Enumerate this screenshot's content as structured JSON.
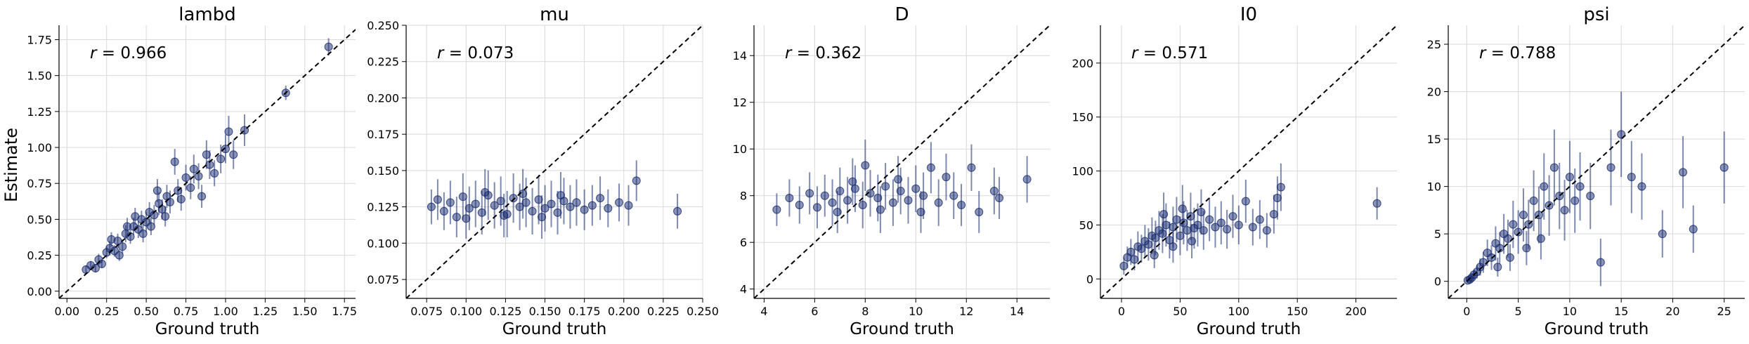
{
  "figure": {
    "ylabel": "Estimate"
  },
  "style": {
    "point_color": "#16296e",
    "diag_color": "#000000",
    "grid_color": "#d9d9d9"
  },
  "chart_data": [
    {
      "type": "scatter",
      "title": "lambd",
      "xlabel": "Ground truth",
      "ylabel": "Estimate",
      "annotation": "r = 0.966",
      "r_value": "0.966",
      "xlim": [
        -0.05,
        1.82
      ],
      "ylim": [
        -0.05,
        1.85
      ],
      "xticks": [
        0.0,
        0.25,
        0.5,
        0.75,
        1.0,
        1.25,
        1.5,
        1.75
      ],
      "xtick_labels": [
        "0.00",
        "0.25",
        "0.50",
        "0.75",
        "1.00",
        "1.25",
        "1.50",
        "1.75"
      ],
      "yticks": [
        0.0,
        0.25,
        0.5,
        0.75,
        1.0,
        1.25,
        1.5,
        1.75
      ],
      "ytick_labels": [
        "0.00",
        "0.25",
        "0.50",
        "0.75",
        "1.00",
        "1.25",
        "1.50",
        "1.75"
      ],
      "grid": true,
      "diagonal": "y = x dashed",
      "points": [
        [
          0.12,
          0.15,
          0.03
        ],
        [
          0.15,
          0.18,
          0.03
        ],
        [
          0.18,
          0.16,
          0.03
        ],
        [
          0.2,
          0.22,
          0.04
        ],
        [
          0.22,
          0.19,
          0.03
        ],
        [
          0.25,
          0.27,
          0.04
        ],
        [
          0.27,
          0.3,
          0.05
        ],
        [
          0.3,
          0.28,
          0.04
        ],
        [
          0.32,
          0.35,
          0.05
        ],
        [
          0.35,
          0.31,
          0.05
        ],
        [
          0.37,
          0.4,
          0.06
        ],
        [
          0.4,
          0.38,
          0.05
        ],
        [
          0.42,
          0.45,
          0.06
        ],
        [
          0.45,
          0.43,
          0.06
        ],
        [
          0.47,
          0.5,
          0.06
        ],
        [
          0.5,
          0.48,
          0.07
        ],
        [
          0.52,
          0.55,
          0.07
        ],
        [
          0.55,
          0.53,
          0.07
        ],
        [
          0.58,
          0.61,
          0.08
        ],
        [
          0.6,
          0.57,
          0.07
        ],
        [
          0.63,
          0.66,
          0.08
        ],
        [
          0.65,
          0.62,
          0.08
        ],
        [
          0.68,
          0.9,
          0.09
        ],
        [
          0.7,
          0.7,
          0.08
        ],
        [
          0.72,
          0.64,
          0.08
        ],
        [
          0.75,
          0.79,
          0.09
        ],
        [
          0.78,
          0.72,
          0.08
        ],
        [
          0.8,
          0.85,
          0.1
        ],
        [
          0.83,
          0.8,
          0.09
        ],
        [
          0.85,
          0.66,
          0.08
        ],
        [
          0.88,
          0.95,
          0.1
        ],
        [
          0.9,
          0.88,
          0.1
        ],
        [
          0.93,
          0.82,
          0.09
        ],
        [
          0.97,
          0.92,
          0.1
        ],
        [
          1.0,
          0.99,
          0.1
        ],
        [
          1.02,
          1.11,
          0.11
        ],
        [
          1.05,
          0.95,
          0.1
        ],
        [
          1.12,
          1.12,
          0.11
        ],
        [
          1.38,
          1.38,
          0.05
        ],
        [
          1.65,
          1.7,
          0.06
        ],
        [
          0.28,
          0.36,
          0.05
        ],
        [
          0.33,
          0.25,
          0.04
        ],
        [
          0.43,
          0.52,
          0.06
        ],
        [
          0.53,
          0.45,
          0.06
        ],
        [
          0.57,
          0.7,
          0.08
        ],
        [
          0.62,
          0.52,
          0.07
        ],
        [
          0.38,
          0.45,
          0.06
        ],
        [
          0.48,
          0.4,
          0.06
        ]
      ]
    },
    {
      "type": "scatter",
      "title": "mu",
      "xlabel": "Ground truth",
      "ylabel": "",
      "annotation": "r = 0.073",
      "r_value": "0.073",
      "xlim": [
        0.062,
        0.25
      ],
      "ylim": [
        0.062,
        0.25
      ],
      "xticks": [
        0.075,
        0.1,
        0.125,
        0.15,
        0.175,
        0.2,
        0.225,
        0.25
      ],
      "xtick_labels": [
        "0.075",
        "0.100",
        "0.125",
        "0.150",
        "0.175",
        "0.200",
        "0.225",
        "0.250"
      ],
      "yticks": [
        0.075,
        0.1,
        0.125,
        0.15,
        0.175,
        0.2,
        0.225,
        0.25
      ],
      "ytick_labels": [
        "0.075",
        "0.100",
        "0.125",
        "0.150",
        "0.175",
        "0.200",
        "0.225",
        "0.250"
      ],
      "grid": true,
      "diagonal": "y = x dashed",
      "points": [
        [
          0.078,
          0.125,
          0.012
        ],
        [
          0.082,
          0.13,
          0.014
        ],
        [
          0.086,
          0.122,
          0.013
        ],
        [
          0.09,
          0.128,
          0.015
        ],
        [
          0.094,
          0.118,
          0.014
        ],
        [
          0.098,
          0.132,
          0.016
        ],
        [
          0.102,
          0.124,
          0.015
        ],
        [
          0.106,
          0.127,
          0.016
        ],
        [
          0.11,
          0.121,
          0.015
        ],
        [
          0.114,
          0.133,
          0.017
        ],
        [
          0.118,
          0.126,
          0.016
        ],
        [
          0.122,
          0.129,
          0.017
        ],
        [
          0.126,
          0.12,
          0.016
        ],
        [
          0.13,
          0.131,
          0.017
        ],
        [
          0.134,
          0.125,
          0.016
        ],
        [
          0.138,
          0.128,
          0.017
        ],
        [
          0.142,
          0.122,
          0.016
        ],
        [
          0.146,
          0.13,
          0.017
        ],
        [
          0.15,
          0.124,
          0.016
        ],
        [
          0.154,
          0.127,
          0.016
        ],
        [
          0.158,
          0.121,
          0.015
        ],
        [
          0.162,
          0.129,
          0.016
        ],
        [
          0.166,
          0.125,
          0.015
        ],
        [
          0.17,
          0.128,
          0.016
        ],
        [
          0.175,
          0.123,
          0.014
        ],
        [
          0.18,
          0.126,
          0.014
        ],
        [
          0.185,
          0.131,
          0.015
        ],
        [
          0.19,
          0.124,
          0.013
        ],
        [
          0.197,
          0.128,
          0.013
        ],
        [
          0.203,
          0.126,
          0.014
        ],
        [
          0.208,
          0.143,
          0.014
        ],
        [
          0.234,
          0.122,
          0.012
        ],
        [
          0.1,
          0.117,
          0.014
        ],
        [
          0.112,
          0.135,
          0.016
        ],
        [
          0.124,
          0.119,
          0.015
        ],
        [
          0.136,
          0.134,
          0.017
        ],
        [
          0.148,
          0.118,
          0.015
        ],
        [
          0.16,
          0.133,
          0.016
        ]
      ]
    },
    {
      "type": "scatter",
      "title": "D",
      "xlabel": "Ground truth",
      "ylabel": "",
      "annotation": "r = 0.362",
      "r_value": "0.362",
      "xlim": [
        3.6,
        15.3
      ],
      "ylim": [
        3.6,
        15.3
      ],
      "xticks": [
        4,
        6,
        8,
        10,
        12,
        14
      ],
      "xtick_labels": [
        "4",
        "6",
        "8",
        "10",
        "12",
        "14"
      ],
      "yticks": [
        4,
        6,
        8,
        10,
        12,
        14
      ],
      "ytick_labels": [
        "4",
        "6",
        "8",
        "10",
        "12",
        "14"
      ],
      "grid": true,
      "diagonal": "y = x dashed",
      "points": [
        [
          4.5,
          7.4,
          0.7
        ],
        [
          5.0,
          7.9,
          0.8
        ],
        [
          5.4,
          7.6,
          0.8
        ],
        [
          5.8,
          8.1,
          0.9
        ],
        [
          6.1,
          7.5,
          0.9
        ],
        [
          6.4,
          8.0,
          0.9
        ],
        [
          6.7,
          7.7,
          1.0
        ],
        [
          7.0,
          8.2,
          1.0
        ],
        [
          7.3,
          7.8,
          1.0
        ],
        [
          7.6,
          8.3,
          1.0
        ],
        [
          7.9,
          7.6,
          1.0
        ],
        [
          8.2,
          8.1,
          1.0
        ],
        [
          8.5,
          7.9,
          1.0
        ],
        [
          8.8,
          8.4,
          1.0
        ],
        [
          9.1,
          7.7,
          1.0
        ],
        [
          9.4,
          8.2,
          1.0
        ],
        [
          9.7,
          7.8,
          1.0
        ],
        [
          10.0,
          8.3,
          1.0
        ],
        [
          10.3,
          8.0,
          1.0
        ],
        [
          10.6,
          9.2,
          1.1
        ],
        [
          10.9,
          7.7,
          1.0
        ],
        [
          11.2,
          8.8,
          1.0
        ],
        [
          11.5,
          8.0,
          1.0
        ],
        [
          11.8,
          7.6,
          0.9
        ],
        [
          12.2,
          9.2,
          1.0
        ],
        [
          12.5,
          7.3,
          0.9
        ],
        [
          13.1,
          8.2,
          1.0
        ],
        [
          13.3,
          7.9,
          0.9
        ],
        [
          14.4,
          8.7,
          1.0
        ],
        [
          6.9,
          7.3,
          0.9
        ],
        [
          7.5,
          8.6,
          1.0
        ],
        [
          8.6,
          7.4,
          1.0
        ],
        [
          9.3,
          8.7,
          1.0
        ],
        [
          10.2,
          7.3,
          0.9
        ],
        [
          8.0,
          9.3,
          1.1
        ]
      ]
    },
    {
      "type": "scatter",
      "title": "I0",
      "xlabel": "Ground truth",
      "ylabel": "",
      "annotation": "r = 0.571",
      "r_value": "0.571",
      "xlim": [
        -18,
        235
      ],
      "ylim": [
        -18,
        235
      ],
      "xticks": [
        0,
        50,
        100,
        150,
        200
      ],
      "xtick_labels": [
        "0",
        "50",
        "100",
        "150",
        "200"
      ],
      "yticks": [
        0,
        50,
        100,
        150,
        200
      ],
      "ytick_labels": [
        "0",
        "50",
        "100",
        "150",
        "200"
      ],
      "grid": true,
      "diagonal": "y = x dashed",
      "points": [
        [
          2,
          12,
          8
        ],
        [
          5,
          20,
          10
        ],
        [
          8,
          25,
          12
        ],
        [
          11,
          18,
          10
        ],
        [
          14,
          30,
          14
        ],
        [
          17,
          28,
          13
        ],
        [
          20,
          35,
          15
        ],
        [
          23,
          32,
          15
        ],
        [
          26,
          40,
          17
        ],
        [
          29,
          38,
          16
        ],
        [
          32,
          45,
          18
        ],
        [
          35,
          42,
          18
        ],
        [
          38,
          50,
          20
        ],
        [
          41,
          36,
          17
        ],
        [
          44,
          48,
          19
        ],
        [
          47,
          55,
          21
        ],
        [
          50,
          40,
          18
        ],
        [
          53,
          52,
          20
        ],
        [
          56,
          45,
          19
        ],
        [
          59,
          58,
          22
        ],
        [
          62,
          47,
          19
        ],
        [
          65,
          50,
          20
        ],
        [
          70,
          45,
          18
        ],
        [
          75,
          55,
          20
        ],
        [
          80,
          48,
          19
        ],
        [
          85,
          52,
          20
        ],
        [
          90,
          46,
          18
        ],
        [
          95,
          58,
          20
        ],
        [
          100,
          50,
          18
        ],
        [
          106,
          72,
          20
        ],
        [
          112,
          48,
          17
        ],
        [
          118,
          55,
          18
        ],
        [
          124,
          45,
          16
        ],
        [
          130,
          60,
          18
        ],
        [
          133,
          75,
          20
        ],
        [
          136,
          85,
          22
        ],
        [
          218,
          70,
          15
        ],
        [
          28,
          22,
          12
        ],
        [
          36,
          60,
          20
        ],
        [
          44,
          30,
          15
        ],
        [
          52,
          65,
          22
        ],
        [
          60,
          35,
          16
        ],
        [
          68,
          62,
          21
        ]
      ]
    },
    {
      "type": "scatter",
      "title": "psi",
      "xlabel": "Ground truth",
      "ylabel": "",
      "annotation": "r = 0.788",
      "r_value": "0.788",
      "xlim": [
        -1.8,
        27.0
      ],
      "ylim": [
        -1.8,
        27.0
      ],
      "xticks": [
        0,
        5,
        10,
        15,
        20,
        25
      ],
      "xtick_labels": [
        "0",
        "5",
        "10",
        "15",
        "20",
        "25"
      ],
      "yticks": [
        0,
        5,
        10,
        15,
        20,
        25
      ],
      "ytick_labels": [
        "0",
        "5",
        "10",
        "15",
        "20",
        "25"
      ],
      "grid": true,
      "diagonal": "y = x dashed",
      "points": [
        [
          0.1,
          0.1,
          0.2
        ],
        [
          0.3,
          0.2,
          0.3
        ],
        [
          0.5,
          0.4,
          0.4
        ],
        [
          0.7,
          0.7,
          0.5
        ],
        [
          1.0,
          1.0,
          0.7
        ],
        [
          1.3,
          1.5,
          0.9
        ],
        [
          1.6,
          2.0,
          1.1
        ],
        [
          2.0,
          3.0,
          1.4
        ],
        [
          2.4,
          2.5,
          1.3
        ],
        [
          2.8,
          4.0,
          1.8
        ],
        [
          3.2,
          3.5,
          1.7
        ],
        [
          3.6,
          5.0,
          2.1
        ],
        [
          4.0,
          4.5,
          2.0
        ],
        [
          4.5,
          6.0,
          2.5
        ],
        [
          5.0,
          5.2,
          2.3
        ],
        [
          5.5,
          7.0,
          2.8
        ],
        [
          6.0,
          6.0,
          2.6
        ],
        [
          6.5,
          8.5,
          3.2
        ],
        [
          7.0,
          7.0,
          3.0
        ],
        [
          7.5,
          10.0,
          3.5
        ],
        [
          8.0,
          8.0,
          3.2
        ],
        [
          8.5,
          12.0,
          4.0
        ],
        [
          9.0,
          9.0,
          3.5
        ],
        [
          9.5,
          7.5,
          3.2
        ],
        [
          10.0,
          11.0,
          3.8
        ],
        [
          10.5,
          8.5,
          3.4
        ],
        [
          11.0,
          10.0,
          3.6
        ],
        [
          12.0,
          9.0,
          3.5
        ],
        [
          13.0,
          2.0,
          2.5
        ],
        [
          14.0,
          12.0,
          4.0
        ],
        [
          15.0,
          15.5,
          4.5
        ],
        [
          16.0,
          11.0,
          3.8
        ],
        [
          17.0,
          10.0,
          3.5
        ],
        [
          19.0,
          5.0,
          2.5
        ],
        [
          21.0,
          11.5,
          3.8
        ],
        [
          22.0,
          5.5,
          2.5
        ],
        [
          25.0,
          12.0,
          3.8
        ],
        [
          3.0,
          1.5,
          1.0
        ],
        [
          4.2,
          2.5,
          1.4
        ],
        [
          5.8,
          3.5,
          1.8
        ],
        [
          7.2,
          4.5,
          2.2
        ]
      ]
    }
  ]
}
